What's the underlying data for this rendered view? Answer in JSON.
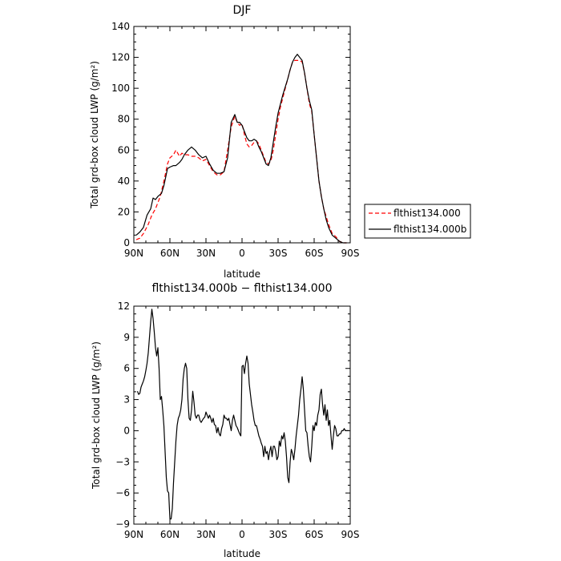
{
  "chart_data": [
    {
      "type": "line",
      "title": "DJF",
      "xlabel": "latitude",
      "ylabel": "Total grd-box cloud LWP (g/m²)",
      "xlim": [
        90,
        -90
      ],
      "ylim": [
        0,
        140
      ],
      "x_ticks": [
        90,
        60,
        30,
        0,
        -30,
        -60,
        -90
      ],
      "x_tick_labels": [
        "90N",
        "60N",
        "30N",
        "0",
        "30S",
        "60S",
        "90S"
      ],
      "y_ticks": [
        0,
        20,
        40,
        60,
        80,
        100,
        120,
        140
      ],
      "y_tick_labels": [
        "0",
        "20",
        "40",
        "60",
        "80",
        "100",
        "120",
        "140"
      ],
      "legend": "right",
      "series": [
        {
          "name": "flthist134.000",
          "color": "#ff0000",
          "dash": "dashed",
          "x": [
            88,
            85,
            82,
            78,
            75,
            72,
            68,
            65,
            62,
            60,
            57,
            55,
            52,
            50,
            48,
            45,
            42,
            39,
            36,
            33,
            30,
            27,
            24,
            21,
            18,
            15,
            12,
            9,
            6,
            4,
            2,
            0,
            -2,
            -4,
            -6,
            -8,
            -10,
            -12,
            -14,
            -16,
            -18,
            -20,
            -22,
            -24,
            -26,
            -28,
            -30,
            -32,
            -34,
            -36,
            -38,
            -40,
            -42,
            -44,
            -46,
            -48,
            -50,
            -52,
            -54,
            -56,
            -58,
            -60,
            -62,
            -64,
            -66,
            -68,
            -70,
            -72,
            -75,
            -78,
            -81,
            -84,
            -87
          ],
          "y": [
            2,
            3,
            6,
            12,
            18,
            22,
            30,
            40,
            51,
            55,
            57,
            60,
            56,
            58,
            57,
            57,
            56,
            56,
            55,
            53,
            54,
            50,
            46,
            44,
            44,
            46,
            60,
            75,
            82,
            78,
            76,
            77,
            70,
            64,
            62,
            63,
            65,
            66,
            64,
            60,
            56,
            52,
            51,
            53,
            60,
            70,
            80,
            88,
            94,
            100,
            106,
            112,
            117,
            118,
            118,
            118,
            117,
            110,
            100,
            90,
            85,
            70,
            55,
            40,
            30,
            22,
            17,
            12,
            6,
            4,
            1,
            0,
            0
          ]
        },
        {
          "name": "flthist134.000b",
          "color": "#000000",
          "dash": "solid",
          "x": [
            88,
            85,
            82,
            79,
            76,
            74,
            72,
            70,
            67,
            65,
            62,
            60,
            57,
            55,
            52,
            50,
            48,
            45,
            42,
            39,
            36,
            33,
            30,
            27,
            24,
            21,
            18,
            15,
            12,
            9,
            6,
            4,
            2,
            0,
            -2,
            -4,
            -6,
            -8,
            -10,
            -12,
            -14,
            -16,
            -18,
            -20,
            -22,
            -24,
            -26,
            -28,
            -30,
            -32,
            -34,
            -36,
            -38,
            -40,
            -42,
            -44,
            -46,
            -48,
            -50,
            -52,
            -54,
            -56,
            -58,
            -60,
            -62,
            -64,
            -66,
            -68,
            -70,
            -72,
            -75,
            -78,
            -81,
            -84,
            -87
          ],
          "y": [
            5,
            7,
            10,
            18,
            22,
            29,
            28,
            30,
            32,
            37,
            48,
            49,
            50,
            50,
            52,
            54,
            57,
            60,
            62,
            60,
            57,
            55,
            56,
            51,
            47,
            45,
            45,
            46,
            55,
            78,
            83,
            78,
            78,
            76,
            72,
            68,
            66,
            66,
            67,
            66,
            62,
            59,
            55,
            51,
            50,
            55,
            65,
            75,
            84,
            90,
            96,
            101,
            106,
            112,
            117,
            120,
            122,
            120,
            118,
            110,
            100,
            92,
            86,
            70,
            55,
            40,
            30,
            22,
            15,
            10,
            5,
            3,
            1,
            0,
            0
          ]
        }
      ]
    },
    {
      "type": "line",
      "title": "flthist134.000b − flthist134.000",
      "xlabel": "latitude",
      "ylabel": "Total grd-box cloud LWP (g/m²)",
      "xlim": [
        90,
        -90
      ],
      "ylim": [
        -9,
        12
      ],
      "x_ticks": [
        90,
        60,
        30,
        0,
        -30,
        -60,
        -90
      ],
      "x_tick_labels": [
        "90N",
        "60N",
        "30N",
        "0",
        "30S",
        "60S",
        "90S"
      ],
      "y_ticks": [
        -9,
        -6,
        -3,
        0,
        3,
        6,
        9,
        12
      ],
      "y_tick_labels": [
        "−9",
        "−6",
        "−3",
        "0",
        "3",
        "6",
        "9",
        "12"
      ],
      "series": [
        {
          "color": "#000000",
          "dash": "solid",
          "x": [
            87,
            86,
            85,
            84,
            83,
            82,
            81,
            80,
            79,
            78,
            77,
            76,
            75,
            74,
            73,
            72,
            71,
            70,
            69,
            68,
            67,
            66,
            65,
            64,
            63,
            62,
            61,
            60,
            59,
            58,
            57,
            56,
            55,
            54,
            53,
            52,
            51,
            50,
            49,
            48,
            47,
            46,
            45,
            44,
            43,
            42,
            41,
            40,
            39,
            38,
            37,
            36,
            35,
            34,
            33,
            32,
            31,
            30,
            29,
            28,
            27,
            26,
            25,
            24,
            23,
            22,
            21,
            20,
            19,
            18,
            17,
            16,
            15,
            14,
            13,
            12,
            11,
            10,
            9,
            8,
            7,
            6,
            5,
            4,
            3,
            2,
            1,
            0,
            -1,
            -2,
            -3,
            -4,
            -5,
            -6,
            -7,
            -8,
            -9,
            -10,
            -11,
            -12,
            -13,
            -14,
            -15,
            -16,
            -17,
            -18,
            -19,
            -20,
            -21,
            -22,
            -23,
            -24,
            -25,
            -26,
            -27,
            -28,
            -29,
            -30,
            -31,
            -32,
            -33,
            -34,
            -35,
            -36,
            -37,
            -38,
            -39,
            -40,
            -41,
            -42,
            -43,
            -44,
            -45,
            -46,
            -47,
            -48,
            -49,
            -50,
            -51,
            -52,
            -53,
            -54,
            -55,
            -56,
            -57,
            -58,
            -59,
            -60,
            -61,
            -62,
            -63,
            -64,
            -65,
            -66,
            -67,
            -68,
            -69,
            -70,
            -71,
            -72,
            -73,
            -74,
            -75,
            -76,
            -77,
            -78,
            -79,
            -80,
            -81,
            -82,
            -83,
            -84,
            -85,
            -86,
            -87,
            -88,
            -89
          ],
          "y": [
            3.8,
            3.5,
            3.6,
            4.2,
            4.5,
            4.8,
            5.2,
            5.8,
            6.5,
            7.5,
            9.0,
            10.5,
            11.7,
            10.8,
            9.5,
            8.0,
            7.2,
            8.0,
            6.0,
            3.0,
            3.3,
            2.0,
            0.5,
            -2.0,
            -4.5,
            -5.8,
            -6.0,
            -8.5,
            -8.5,
            -7.5,
            -5.0,
            -3.0,
            -1.0,
            0.5,
            1.2,
            1.5,
            2.0,
            3.0,
            5.0,
            6.0,
            6.5,
            6.0,
            3.0,
            1.2,
            1.0,
            2.0,
            3.8,
            2.8,
            1.5,
            1.2,
            1.5,
            1.5,
            1.0,
            0.8,
            1.0,
            1.2,
            1.3,
            1.8,
            1.5,
            1.2,
            1.5,
            1.2,
            0.8,
            1.2,
            0.6,
            0.5,
            -0.2,
            0.3,
            -0.3,
            -0.5,
            0.2,
            0.6,
            1.5,
            1.2,
            1.2,
            1.0,
            1.2,
            0.6,
            0.0,
            1.0,
            1.5,
            1.0,
            0.5,
            0.3,
            0.0,
            -0.3,
            -0.5,
            6.2,
            6.3,
            5.5,
            6.5,
            7.2,
            6.5,
            4.5,
            3.5,
            2.5,
            1.8,
            1.0,
            0.5,
            0.5,
            0.0,
            -0.5,
            -0.8,
            -1.2,
            -1.5,
            -2.5,
            -1.5,
            -2.2,
            -2.0,
            -2.8,
            -2.0,
            -1.5,
            -2.5,
            -1.5,
            -1.5,
            -2.0,
            -2.8,
            -2.5,
            -1.0,
            -1.5,
            -0.5,
            -0.8,
            -0.2,
            -1.0,
            -2.5,
            -4.5,
            -5.0,
            -3.0,
            -1.8,
            -2.2,
            -2.8,
            -1.8,
            -0.5,
            0.5,
            1.5,
            3.0,
            4.0,
            5.2,
            4.0,
            2.0,
            0.0,
            -0.2,
            -1.5,
            -2.5,
            -3.0,
            -1.5,
            0.5,
            0.0,
            0.8,
            0.5,
            1.5,
            2.0,
            3.5,
            4.0,
            2.5,
            1.5,
            2.5,
            1.0,
            2.0,
            0.5,
            1.0,
            -0.5,
            -1.8,
            -0.5,
            0.5,
            0.2,
            -0.5,
            -0.5,
            -0.3,
            -0.3,
            0.0,
            0.0,
            0.2,
            0.0,
            0.0,
            0.0,
            0.0
          ]
        }
      ]
    }
  ]
}
